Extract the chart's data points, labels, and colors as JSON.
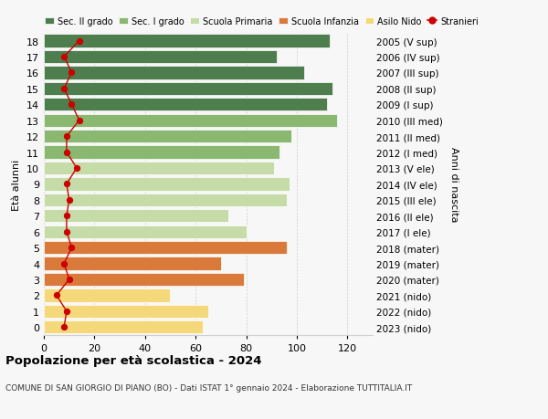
{
  "ages": [
    0,
    1,
    2,
    3,
    4,
    5,
    6,
    7,
    8,
    9,
    10,
    11,
    12,
    13,
    14,
    15,
    16,
    17,
    18
  ],
  "right_labels": [
    "2023 (nido)",
    "2022 (nido)",
    "2021 (nido)",
    "2020 (mater)",
    "2019 (mater)",
    "2018 (mater)",
    "2017 (I ele)",
    "2016 (II ele)",
    "2015 (III ele)",
    "2014 (IV ele)",
    "2013 (V ele)",
    "2012 (I med)",
    "2011 (II med)",
    "2010 (III med)",
    "2009 (I sup)",
    "2008 (II sup)",
    "2007 (III sup)",
    "2006 (IV sup)",
    "2005 (V sup)"
  ],
  "bar_values": [
    63,
    65,
    50,
    79,
    70,
    96,
    80,
    73,
    96,
    97,
    91,
    93,
    98,
    116,
    112,
    114,
    103,
    92,
    113
  ],
  "bar_colors": [
    "#f5d87a",
    "#f5d87a",
    "#f5d87a",
    "#d97a3a",
    "#d97a3a",
    "#d97a3a",
    "#c5dba8",
    "#c5dba8",
    "#c5dba8",
    "#c5dba8",
    "#c5dba8",
    "#8ab870",
    "#8ab870",
    "#8ab870",
    "#4e7d4e",
    "#4e7d4e",
    "#4e7d4e",
    "#4e7d4e",
    "#4e7d4e"
  ],
  "stranieri_values": [
    8,
    9,
    5,
    10,
    8,
    11,
    9,
    9,
    10,
    9,
    13,
    9,
    9,
    14,
    11,
    8,
    11,
    8,
    14
  ],
  "title": "Popolazione per età scolastica - 2024",
  "subtitle": "COMUNE DI SAN GIORGIO DI PIANO (BO) - Dati ISTAT 1° gennaio 2024 - Elaborazione TUTTITALIA.IT",
  "ylabel_left": "Età alunni",
  "ylabel_right": "Anni di nascita",
  "xlim": [
    0,
    130
  ],
  "xticks": [
    0,
    20,
    40,
    60,
    80,
    100,
    120
  ],
  "legend_items": [
    {
      "label": "Sec. II grado",
      "color": "#4e7d4e"
    },
    {
      "label": "Sec. I grado",
      "color": "#8ab870"
    },
    {
      "label": "Scuola Primaria",
      "color": "#c5dba8"
    },
    {
      "label": "Scuola Infanzia",
      "color": "#d97a3a"
    },
    {
      "label": "Asilo Nido",
      "color": "#f5d87a"
    },
    {
      "label": "Stranieri",
      "color": "#cc0000"
    }
  ],
  "bg_color": "#f7f7f7",
  "bar_edge_color": "#ffffff",
  "grid_color": "#d0d0d0"
}
